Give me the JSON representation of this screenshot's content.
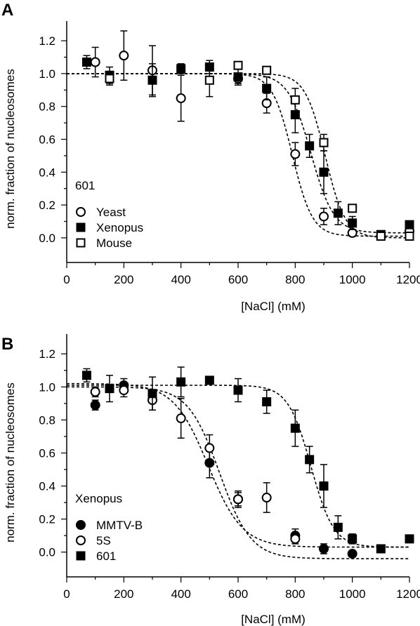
{
  "chart_data": [
    {
      "panel_label": "A",
      "type": "scatter",
      "xlabel": "[NaCl] (mM)",
      "ylabel": "norm. fraction of nucleosomes",
      "xlim": [
        0,
        1200
      ],
      "ylim": [
        -0.15,
        1.32
      ],
      "xticks": [
        0,
        200,
        400,
        600,
        800,
        1000,
        1200
      ],
      "yticks": [
        0.0,
        0.2,
        0.4,
        0.6,
        0.8,
        1.0,
        1.2
      ],
      "ytick_labels": [
        "0.0",
        "0.2",
        "0.4",
        "0.6",
        "0.8",
        "1.0",
        "1.2"
      ],
      "grid": false,
      "legend": {
        "title": "601",
        "placement": "bottom-left"
      },
      "series": [
        {
          "name": "Yeast",
          "marker": "open-circle",
          "points": [
            {
              "x": 100,
              "y": 1.07,
              "err": 0.09
            },
            {
              "x": 200,
              "y": 1.11,
              "err": 0.15
            },
            {
              "x": 300,
              "y": 1.02,
              "err": 0.15
            },
            {
              "x": 400,
              "y": 0.85,
              "err": 0.14
            },
            {
              "x": 600,
              "y": 0.97,
              "err": 0.03
            },
            {
              "x": 700,
              "y": 0.82,
              "err": 0.06
            },
            {
              "x": 800,
              "y": 0.51,
              "err": 0.07
            },
            {
              "x": 900,
              "y": 0.13,
              "err": 0.05
            },
            {
              "x": 1000,
              "y": 0.03,
              "err": 0.02
            },
            {
              "x": 1200,
              "y": 0.04,
              "err": 0.02
            }
          ],
          "fit": {
            "midpoint": 790,
            "width": 35,
            "top": 1.0,
            "bottom": 0.01
          }
        },
        {
          "name": "Xenopus",
          "marker": "filled-square",
          "points": [
            {
              "x": 70,
              "y": 1.07,
              "err": 0.04
            },
            {
              "x": 150,
              "y": 0.99,
              "err": 0.05
            },
            {
              "x": 300,
              "y": 0.96,
              "err": 0.1
            },
            {
              "x": 400,
              "y": 1.03,
              "err": 0.03
            },
            {
              "x": 500,
              "y": 1.04,
              "err": 0.04
            },
            {
              "x": 600,
              "y": 0.98,
              "err": 0.05
            },
            {
              "x": 700,
              "y": 0.91,
              "err": 0.07
            },
            {
              "x": 800,
              "y": 0.75,
              "err": 0.11
            },
            {
              "x": 850,
              "y": 0.56,
              "err": 0.07
            },
            {
              "x": 900,
              "y": 0.4,
              "err": 0.13
            },
            {
              "x": 950,
              "y": 0.15,
              "err": 0.07
            },
            {
              "x": 1000,
              "y": 0.09,
              "err": 0.04
            },
            {
              "x": 1100,
              "y": 0.02,
              "err": 0.02
            },
            {
              "x": 1200,
              "y": 0.08,
              "err": 0.01
            }
          ],
          "fit": {
            "midpoint": 855,
            "width": 40,
            "top": 1.0,
            "bottom": 0.03
          }
        },
        {
          "name": "Mouse",
          "marker": "open-square",
          "points": [
            {
              "x": 150,
              "y": 0.97,
              "err": 0.04
            },
            {
              "x": 500,
              "y": 0.96,
              "err": 0.1
            },
            {
              "x": 600,
              "y": 1.05,
              "err": 0.01
            },
            {
              "x": 700,
              "y": 1.02,
              "err": 0.01
            },
            {
              "x": 800,
              "y": 0.84,
              "err": 0.07
            },
            {
              "x": 900,
              "y": 0.58,
              "err": 0.05
            },
            {
              "x": 1000,
              "y": 0.18,
              "err": 0.01
            },
            {
              "x": 1100,
              "y": 0.01,
              "err": 0.01
            },
            {
              "x": 1200,
              "y": 0.01,
              "err": 0.01
            }
          ],
          "fit": {
            "midpoint": 905,
            "width": 35,
            "top": 1.0,
            "bottom": 0.0
          }
        }
      ]
    },
    {
      "panel_label": "B",
      "type": "scatter",
      "xlabel": "[NaCl] (mM)",
      "ylabel": "norm. fraction of nucleosomes",
      "xlim": [
        0,
        1200
      ],
      "ylim": [
        -0.15,
        1.32
      ],
      "xticks": [
        0,
        200,
        400,
        600,
        800,
        1000,
        1200
      ],
      "yticks": [
        0.0,
        0.2,
        0.4,
        0.6,
        0.8,
        1.0,
        1.2
      ],
      "ytick_labels": [
        "0.0",
        "0.2",
        "0.4",
        "0.6",
        "0.8",
        "1.0",
        "1.2"
      ],
      "grid": false,
      "legend": {
        "title": "Xenopus",
        "placement": "bottom-left"
      },
      "series": [
        {
          "name": "MMTV-B",
          "marker": "filled-circle",
          "points": [
            {
              "x": 100,
              "y": 0.89,
              "err": 0.03
            },
            {
              "x": 200,
              "y": 1.01,
              "err": 0.04
            },
            {
              "x": 500,
              "y": 0.54,
              "err": 0.09
            },
            {
              "x": 600,
              "y": 0.32,
              "err": 0.04
            },
            {
              "x": 800,
              "y": 0.1,
              "err": 0.04
            },
            {
              "x": 900,
              "y": 0.02,
              "err": 0.03
            },
            {
              "x": 1000,
              "y": -0.01,
              "err": 0.01
            }
          ],
          "fit": {
            "midpoint": 535,
            "width": 55,
            "top": 1.0,
            "bottom": -0.04
          }
        },
        {
          "name": "5S",
          "marker": "open-circle",
          "points": [
            {
              "x": 100,
              "y": 0.97,
              "err": 0.03
            },
            {
              "x": 200,
              "y": 0.98,
              "err": 0.04
            },
            {
              "x": 300,
              "y": 0.92,
              "err": 0.06
            },
            {
              "x": 400,
              "y": 0.81,
              "err": 0.12
            },
            {
              "x": 500,
              "y": 0.63,
              "err": 0.08
            },
            {
              "x": 600,
              "y": 0.32,
              "err": 0.05
            },
            {
              "x": 700,
              "y": 0.33,
              "err": 0.09
            },
            {
              "x": 800,
              "y": 0.08,
              "err": 0.03
            }
          ],
          "fit": {
            "midpoint": 495,
            "width": 60,
            "top": 1.02,
            "bottom": 0.03
          }
        },
        {
          "name": "601",
          "marker": "filled-square",
          "points": [
            {
              "x": 70,
              "y": 1.07,
              "err": 0.04
            },
            {
              "x": 150,
              "y": 0.99,
              "err": 0.08
            },
            {
              "x": 300,
              "y": 0.96,
              "err": 0.1
            },
            {
              "x": 400,
              "y": 1.03,
              "err": 0.09
            },
            {
              "x": 500,
              "y": 1.04,
              "err": 0.01
            },
            {
              "x": 600,
              "y": 0.98,
              "err": 0.07
            },
            {
              "x": 700,
              "y": 0.91,
              "err": 0.07
            },
            {
              "x": 800,
              "y": 0.75,
              "err": 0.11
            },
            {
              "x": 850,
              "y": 0.56,
              "err": 0.08
            },
            {
              "x": 900,
              "y": 0.4,
              "err": 0.13
            },
            {
              "x": 950,
              "y": 0.15,
              "err": 0.07
            },
            {
              "x": 1000,
              "y": 0.08,
              "err": 0.03
            },
            {
              "x": 1100,
              "y": 0.02,
              "err": 0.01
            },
            {
              "x": 1200,
              "y": 0.08,
              "err": 0.01
            }
          ],
          "fit": {
            "midpoint": 855,
            "width": 40,
            "top": 1.01,
            "bottom": 0.03
          }
        }
      ]
    }
  ]
}
